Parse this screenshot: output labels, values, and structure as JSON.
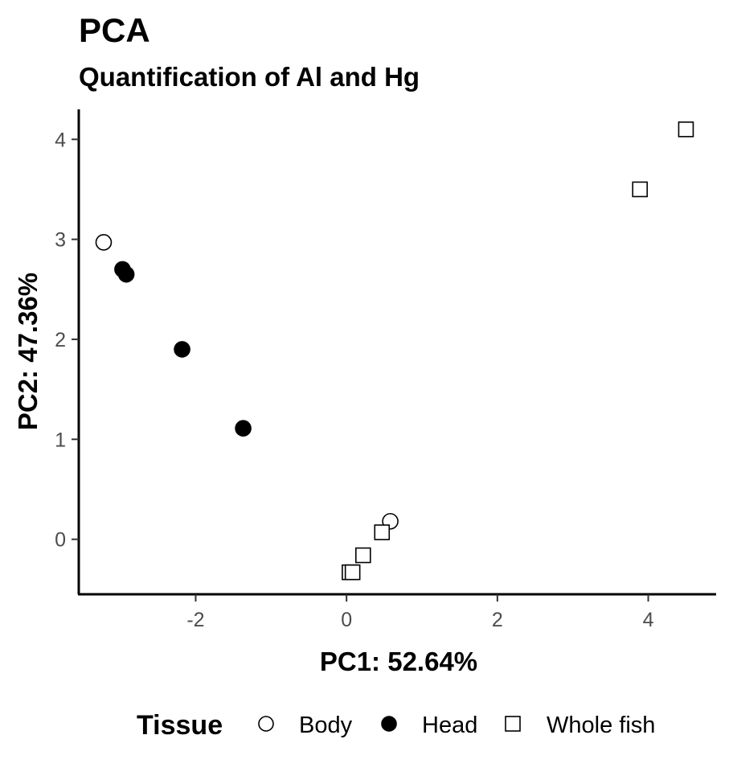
{
  "chart_data": {
    "type": "scatter",
    "title": "PCA",
    "subtitle": "Quantification of Al and Hg",
    "xlabel": "PC1: 52.64%",
    "ylabel": "PC2: 47.36%",
    "xlim": [
      -3.55,
      4.9
    ],
    "ylim": [
      -0.55,
      4.3
    ],
    "xticks": [
      -2,
      0,
      2,
      4
    ],
    "yticks": [
      0,
      1,
      2,
      3,
      4
    ],
    "xtick_labels": [
      "-2",
      "0",
      "2",
      "4"
    ],
    "ytick_labels": [
      "0",
      "1",
      "2",
      "3",
      "4"
    ],
    "grid": false,
    "legend": {
      "title": "Tissue",
      "position": "bottom"
    },
    "series": [
      {
        "name": "Body",
        "marker": "open-circle",
        "color": "#000000",
        "points": [
          {
            "x": -3.22,
            "y": 2.97
          },
          {
            "x": 0.58,
            "y": 0.18
          }
        ]
      },
      {
        "name": "Head",
        "marker": "filled-circle",
        "color": "#000000",
        "points": [
          {
            "x": -2.97,
            "y": 2.7
          },
          {
            "x": -2.92,
            "y": 2.65
          },
          {
            "x": -2.18,
            "y": 1.9
          },
          {
            "x": -1.37,
            "y": 1.11
          }
        ]
      },
      {
        "name": "Whole fish",
        "marker": "open-square",
        "color": "#000000",
        "points": [
          {
            "x": 4.5,
            "y": 4.1
          },
          {
            "x": 3.89,
            "y": 3.5
          },
          {
            "x": 0.47,
            "y": 0.07
          },
          {
            "x": 0.22,
            "y": -0.16
          },
          {
            "x": 0.04,
            "y": -0.33
          },
          {
            "x": 0.08,
            "y": -0.33
          }
        ]
      }
    ]
  }
}
